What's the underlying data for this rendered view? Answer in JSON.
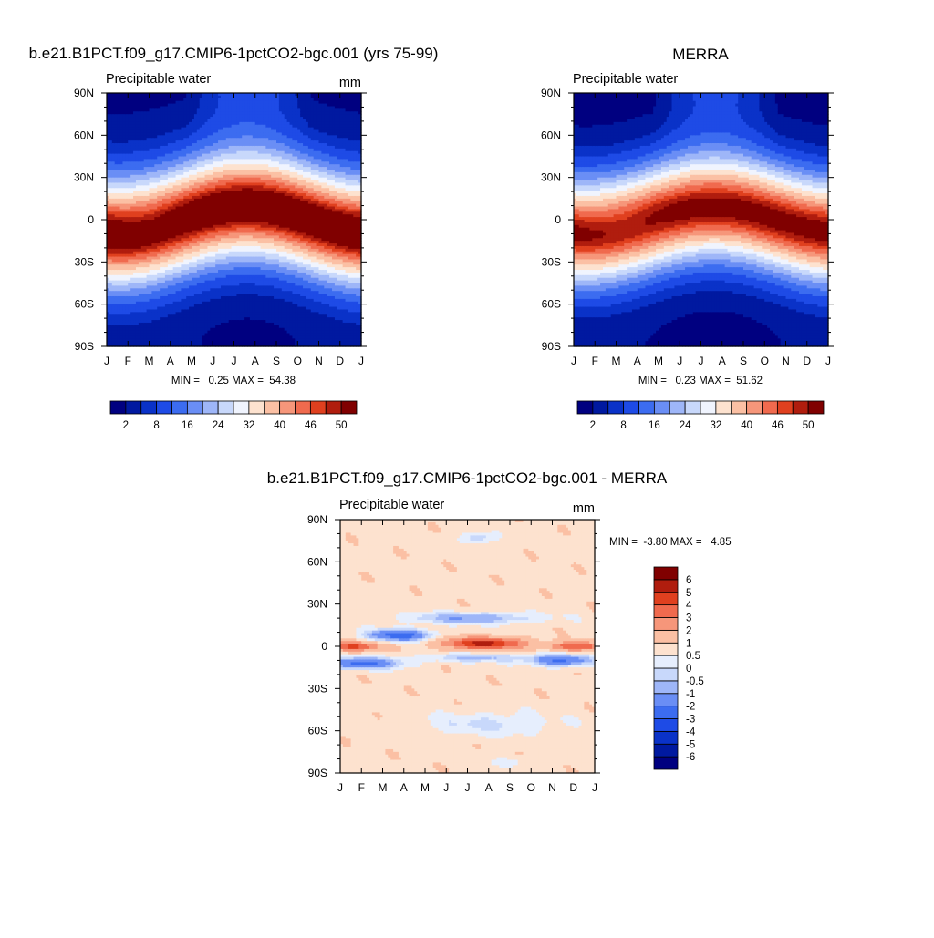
{
  "chart_data": [
    {
      "type": "heatmap",
      "id": "model",
      "title": "b.e21.B1PCT.f09_g17.CMIP6-1pctCO2-bgc.001 (yrs 75-99)",
      "left_label": "Precipitable water",
      "units": "mm",
      "x_ticks": [
        "J",
        "F",
        "M",
        "A",
        "M",
        "J",
        "J",
        "A",
        "S",
        "O",
        "N",
        "D",
        "J"
      ],
      "y_ticks": [
        "90N",
        "60N",
        "30N",
        "0",
        "30S",
        "60S",
        "90S"
      ],
      "y_range": [
        -90,
        90
      ],
      "stats_label": "MIN =   0.25 MAX =  54.38",
      "min": 0.25,
      "max": 54.38,
      "colorbar_orientation": "horizontal",
      "levels": [
        2,
        5,
        8,
        12,
        16,
        20,
        24,
        28,
        32,
        36,
        40,
        43,
        46,
        48,
        50
      ],
      "colorbar_tick_labels": [
        "2",
        "8",
        "16",
        "24",
        "32",
        "40",
        "46",
        "50"
      ],
      "colors": [
        "#000080",
        "#0019a0",
        "#0a32c8",
        "#1e4be6",
        "#3c6cf0",
        "#6a8ef5",
        "#9eb6f8",
        "#c8d8fb",
        "#f0f4fe",
        "#fde2cf",
        "#fbc0a4",
        "#f6967a",
        "#f06a4e",
        "#e0401f",
        "#b01d0e",
        "#800000"
      ],
      "field": {
        "eq_peak": 54.4,
        "hemi_shift_deg": 10,
        "pole_n": 1.5,
        "pole_s": 0.5,
        "width": 28
      }
    },
    {
      "type": "heatmap",
      "id": "obs",
      "title": "MERRA",
      "left_label": "Precipitable water",
      "units": "",
      "x_ticks": [
        "J",
        "F",
        "M",
        "A",
        "M",
        "J",
        "J",
        "A",
        "S",
        "O",
        "N",
        "D",
        "J"
      ],
      "y_ticks": [
        "90N",
        "60N",
        "30N",
        "0",
        "30S",
        "60S",
        "90S"
      ],
      "y_range": [
        -90,
        90
      ],
      "stats_label": "MIN =   0.23 MAX =  51.62",
      "min": 0.23,
      "max": 51.62,
      "colorbar_orientation": "horizontal",
      "levels": [
        2,
        5,
        8,
        12,
        16,
        20,
        24,
        28,
        32,
        36,
        40,
        43,
        46,
        48,
        50
      ],
      "colorbar_tick_labels": [
        "2",
        "8",
        "16",
        "24",
        "32",
        "40",
        "46",
        "50"
      ],
      "colors": [
        "#000080",
        "#0019a0",
        "#0a32c8",
        "#1e4be6",
        "#3c6cf0",
        "#6a8ef5",
        "#9eb6f8",
        "#c8d8fb",
        "#f0f4fe",
        "#fde2cf",
        "#fbc0a4",
        "#f6967a",
        "#f06a4e",
        "#e0401f",
        "#b01d0e",
        "#800000"
      ],
      "field": {
        "eq_peak": 51.6,
        "hemi_shift_deg": 9,
        "pole_n": 1.0,
        "pole_s": 0.3,
        "width": 27
      }
    },
    {
      "type": "heatmap",
      "id": "diff",
      "title": "b.e21.B1PCT.f09_g17.CMIP6-1pctCO2-bgc.001 - MERRA",
      "left_label": "Precipitable water",
      "units": "mm",
      "x_ticks": [
        "J",
        "F",
        "M",
        "A",
        "M",
        "J",
        "J",
        "A",
        "S",
        "O",
        "N",
        "D",
        "J"
      ],
      "y_ticks": [
        "90N",
        "60N",
        "30N",
        "0",
        "30S",
        "60S",
        "90S"
      ],
      "y_range": [
        -90,
        90
      ],
      "stats_label": "MIN =  -3.80 MAX =   4.85",
      "min": -3.8,
      "max": 4.85,
      "colorbar_orientation": "vertical",
      "levels": [
        -6,
        -5,
        -4,
        -3,
        -2,
        -1,
        -0.5,
        0,
        0.5,
        1,
        2,
        3,
        4,
        5,
        6
      ],
      "colorbar_tick_labels": [
        "-6",
        "-5",
        "-4",
        "-3",
        "-2",
        "-1",
        "-0.5",
        "0",
        "0.5",
        "1",
        "2",
        "3",
        "4",
        "5",
        "6"
      ],
      "colors": [
        "#000080",
        "#0019a0",
        "#0a32c8",
        "#1e4be6",
        "#3c6cf0",
        "#6a8ef5",
        "#9eb6f8",
        "#c8d8fb",
        "#e6eefd",
        "#fde2cf",
        "#fbc0a4",
        "#f6967a",
        "#f06a4e",
        "#e0401f",
        "#b01d0e",
        "#800000"
      ]
    }
  ]
}
